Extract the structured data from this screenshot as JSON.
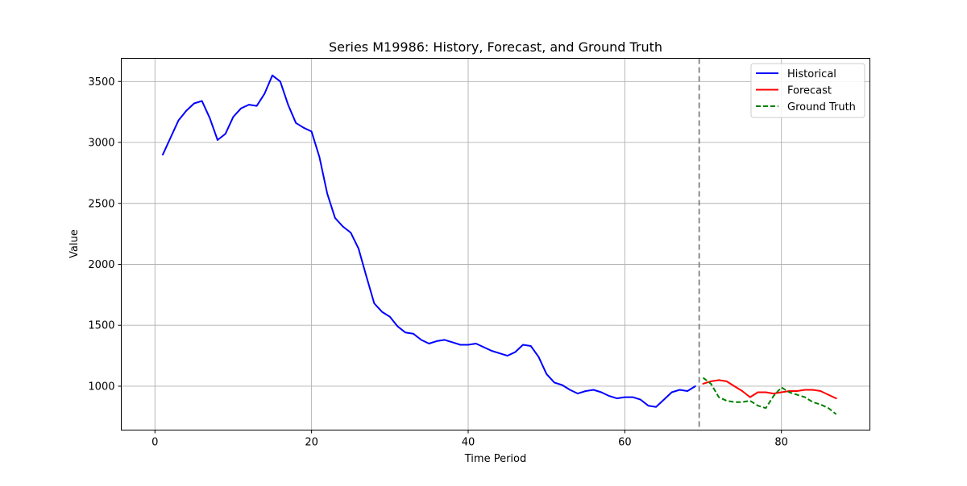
{
  "chart_data": {
    "type": "line",
    "title": "Series M19986: History, Forecast, and Ground Truth",
    "xlabel": "Time Period",
    "ylabel": "Value",
    "xlim": [
      -4.3,
      91.3
    ],
    "ylim": [
      640,
      3690
    ],
    "xticks": [
      0,
      20,
      40,
      60,
      80
    ],
    "yticks": [
      1000,
      1500,
      2000,
      2500,
      3000,
      3500
    ],
    "grid": true,
    "legend_position": "top-right",
    "forecast_start_marker": 69.5,
    "series": [
      {
        "name": "Historical",
        "color": "#0000ff",
        "style": "solid",
        "x": [
          1,
          2,
          3,
          4,
          5,
          6,
          7,
          8,
          9,
          10,
          11,
          12,
          13,
          14,
          15,
          16,
          17,
          18,
          19,
          20,
          21,
          22,
          23,
          24,
          25,
          26,
          27,
          28,
          29,
          30,
          31,
          32,
          33,
          34,
          35,
          36,
          37,
          38,
          39,
          40,
          41,
          42,
          43,
          44,
          45,
          46,
          47,
          48,
          49,
          50,
          51,
          52,
          53,
          54,
          55,
          56,
          57,
          58,
          59,
          60,
          61,
          62,
          63,
          64,
          65,
          66,
          67,
          68,
          69
        ],
        "y": [
          2900,
          3040,
          3180,
          3260,
          3320,
          3340,
          3200,
          3020,
          3070,
          3210,
          3280,
          3310,
          3300,
          3400,
          3550,
          3500,
          3310,
          3160,
          3120,
          3090,
          2880,
          2580,
          2380,
          2310,
          2260,
          2130,
          1900,
          1680,
          1610,
          1570,
          1490,
          1440,
          1430,
          1380,
          1350,
          1370,
          1380,
          1360,
          1340,
          1340,
          1350,
          1320,
          1290,
          1270,
          1250,
          1280,
          1340,
          1330,
          1240,
          1100,
          1030,
          1010,
          970,
          940,
          960,
          970,
          950,
          920,
          900,
          910,
          910,
          890,
          840,
          830,
          890,
          950,
          970,
          960,
          1000
        ]
      },
      {
        "name": "Forecast",
        "color": "#ff0000",
        "style": "solid",
        "x": [
          70,
          71,
          72,
          73,
          74,
          75,
          76,
          77,
          78,
          79,
          80,
          81,
          82,
          83,
          84,
          85,
          86,
          87
        ],
        "y": [
          1020,
          1040,
          1050,
          1040,
          1000,
          960,
          910,
          950,
          950,
          940,
          950,
          960,
          960,
          970,
          970,
          960,
          930,
          900
        ]
      },
      {
        "name": "Ground Truth",
        "color": "#008000",
        "style": "dashed",
        "x": [
          70,
          71,
          72,
          73,
          74,
          75,
          76,
          77,
          78,
          79,
          80,
          81,
          82,
          83,
          84,
          85,
          86,
          87
        ],
        "y": [
          1070,
          1020,
          910,
          880,
          870,
          870,
          880,
          840,
          820,
          920,
          990,
          950,
          930,
          910,
          870,
          850,
          820,
          770
        ]
      }
    ]
  }
}
